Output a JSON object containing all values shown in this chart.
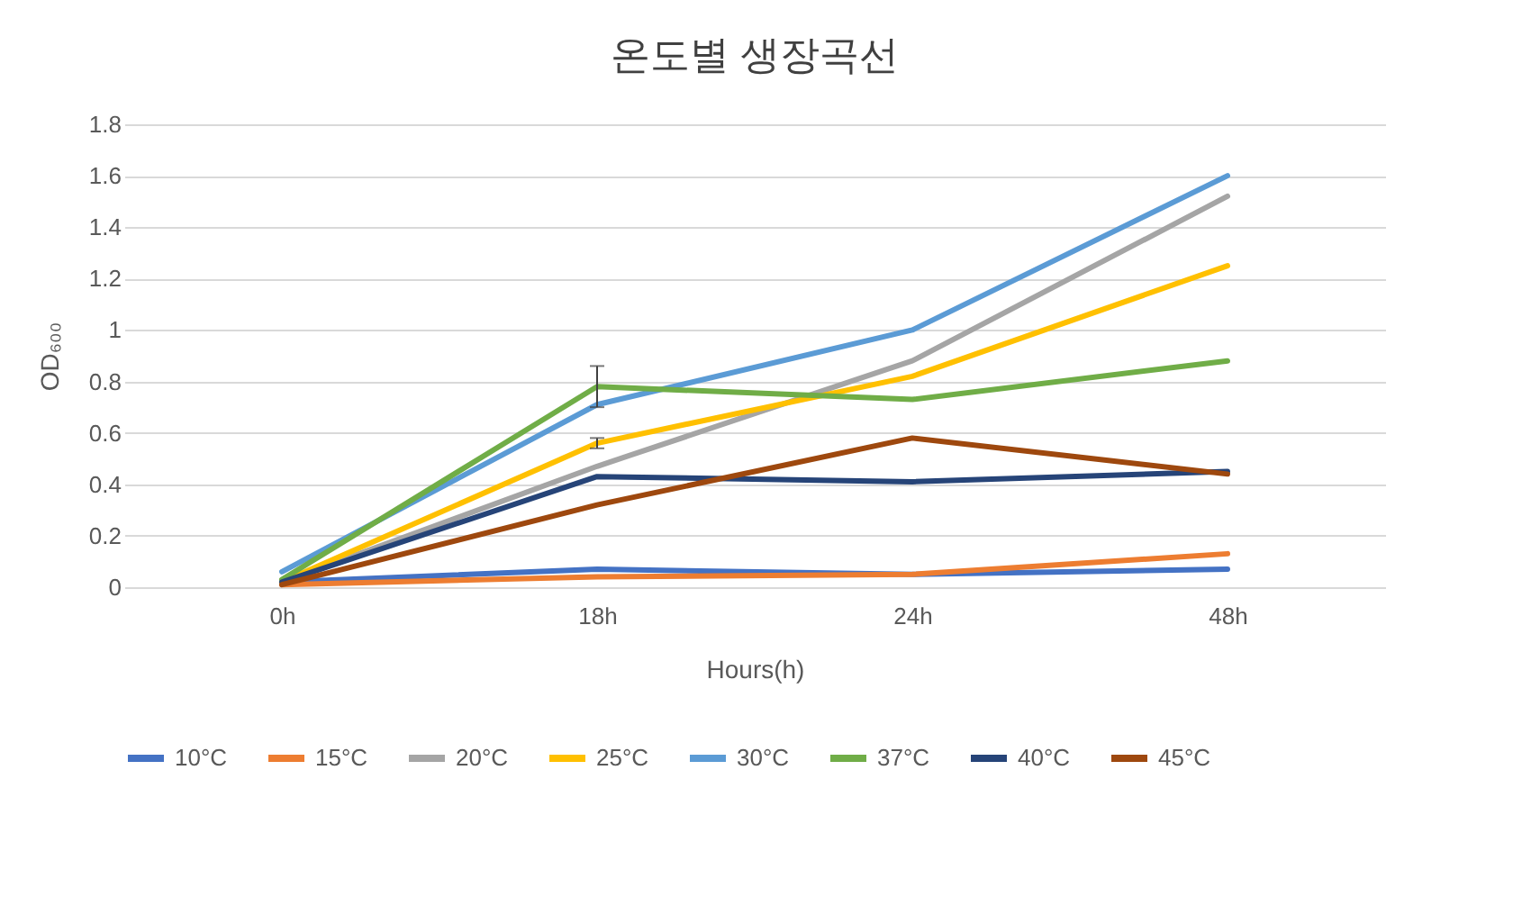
{
  "chart_data": {
    "type": "line",
    "title": "온도별 생장곡선",
    "xlabel": "Hours(h)",
    "ylabel": "OD₆₀₀",
    "categories": [
      "0h",
      "18h",
      "24h",
      "48h"
    ],
    "series": [
      {
        "name": "10°C",
        "color": "#4472c4",
        "values": [
          0.02,
          0.07,
          0.05,
          0.07
        ]
      },
      {
        "name": "15°C",
        "color": "#ed7d31",
        "values": [
          0.01,
          0.04,
          0.05,
          0.13
        ]
      },
      {
        "name": "20°C",
        "color": "#a5a5a5",
        "values": [
          0.02,
          0.47,
          0.88,
          1.52
        ]
      },
      {
        "name": "25°C",
        "color": "#ffc000",
        "values": [
          0.02,
          0.56,
          0.82,
          1.25
        ],
        "errors": [
          null,
          0.02,
          null,
          null
        ]
      },
      {
        "name": "30°C",
        "color": "#5b9bd5",
        "values": [
          0.06,
          0.71,
          1.0,
          1.6
        ]
      },
      {
        "name": "37°C",
        "color": "#70ad47",
        "values": [
          0.03,
          0.78,
          0.73,
          0.88
        ],
        "errors": [
          null,
          0.08,
          null,
          null
        ]
      },
      {
        "name": "40°C",
        "color": "#264478",
        "values": [
          0.02,
          0.43,
          0.41,
          0.45
        ]
      },
      {
        "name": "45°C",
        "color": "#9e480e",
        "values": [
          0.01,
          0.32,
          0.58,
          0.44
        ]
      }
    ],
    "ylim": [
      0,
      1.8
    ],
    "yticks": [
      0,
      0.2,
      0.4,
      0.6,
      0.8,
      1,
      1.2,
      1.4,
      1.6,
      1.8
    ],
    "grid": "y",
    "legend": "bottom",
    "marker": "none",
    "line_style": "solid"
  }
}
